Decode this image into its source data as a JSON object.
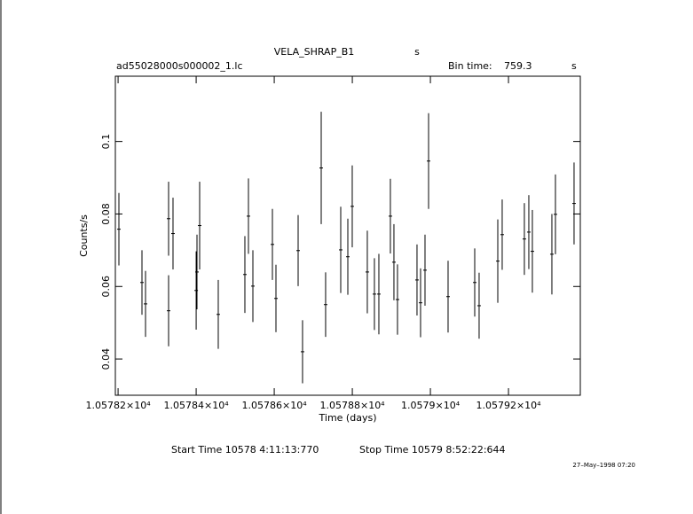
{
  "chart_data": {
    "type": "errorbar",
    "title": "VELA_SHRAP_B1",
    "title_unit": "s",
    "subtitle": "ad55028000s000002_1.lc",
    "bin_time_label": "Bin time:",
    "bin_time": 759.3,
    "bin_time_unit": "s",
    "x_label": "Time (days)",
    "y_label": "Counts/s",
    "start_time": "Start Time 10578  4:11:13:770",
    "stop_time": "Stop Time 10579  8:52:22:644",
    "timestamp": "27–May–1998 07:20",
    "color": "#000000",
    "xlim": [
      10578.193,
      10579.384
    ],
    "ylim": [
      0.03,
      0.118
    ],
    "xticks": [
      {
        "value": 10578.2,
        "label": "1.05782×10⁴"
      },
      {
        "value": 10578.4,
        "label": "1.05784×10⁴"
      },
      {
        "value": 10578.6,
        "label": "1.05786×10⁴"
      },
      {
        "value": 10578.8,
        "label": "1.05788×10⁴"
      },
      {
        "value": 10579.0,
        "label": "1.0579×10⁴"
      },
      {
        "value": 10579.2,
        "label": "1.05792×10⁴"
      }
    ],
    "yticks": [
      0.04,
      0.06,
      0.08,
      0.1
    ],
    "x": [
      10578.2021,
      10578.2612,
      10578.2703,
      10578.3294,
      10578.3294,
      10578.3407,
      10578.4,
      10578.4021,
      10578.4089,
      10578.4566,
      10578.5248,
      10578.5339,
      10578.5453,
      10578.5953,
      10578.6044,
      10578.6612,
      10578.6725,
      10578.7203,
      10578.7316,
      10578.7703,
      10578.7885,
      10578.7998,
      10578.8384,
      10578.8566,
      10578.868,
      10578.8975,
      10578.9066,
      10578.9157,
      10578.9657,
      10578.9748,
      10578.9862,
      10578.9953,
      10579.0453,
      10579.1135,
      10579.1248,
      10579.1726,
      10579.1839,
      10579.2407,
      10579.2521,
      10579.2612,
      10579.3112,
      10579.3203,
      10579.368
    ],
    "values": [
      0.0758,
      0.0611,
      0.0552,
      0.0533,
      0.0787,
      0.0746,
      0.0589,
      0.064,
      0.0768,
      0.0523,
      0.0633,
      0.0794,
      0.0601,
      0.0716,
      0.0567,
      0.0699,
      0.042,
      0.0927,
      0.055,
      0.0701,
      0.0682,
      0.0821,
      0.064,
      0.0579,
      0.0579,
      0.0794,
      0.0667,
      0.0564,
      0.0618,
      0.0555,
      0.0645,
      0.0946,
      0.0572,
      0.0611,
      0.0547,
      0.067,
      0.0743,
      0.0731,
      0.075,
      0.0697,
      0.0689,
      0.0799,
      0.0829
    ],
    "y_errors": [
      0.01,
      0.0089,
      0.0091,
      0.0098,
      0.0102,
      0.0099,
      0.0108,
      0.0103,
      0.0121,
      0.0095,
      0.0106,
      0.0104,
      0.0099,
      0.0098,
      0.0093,
      0.0098,
      0.0087,
      0.0155,
      0.0089,
      0.0119,
      0.0105,
      0.0113,
      0.0114,
      0.0099,
      0.0111,
      0.0103,
      0.0105,
      0.0097,
      0.0098,
      0.0095,
      0.0098,
      0.0132,
      0.0099,
      0.0094,
      0.0091,
      0.0115,
      0.0097,
      0.0099,
      0.0102,
      0.0114,
      0.0111,
      0.011,
      0.0113
    ]
  }
}
